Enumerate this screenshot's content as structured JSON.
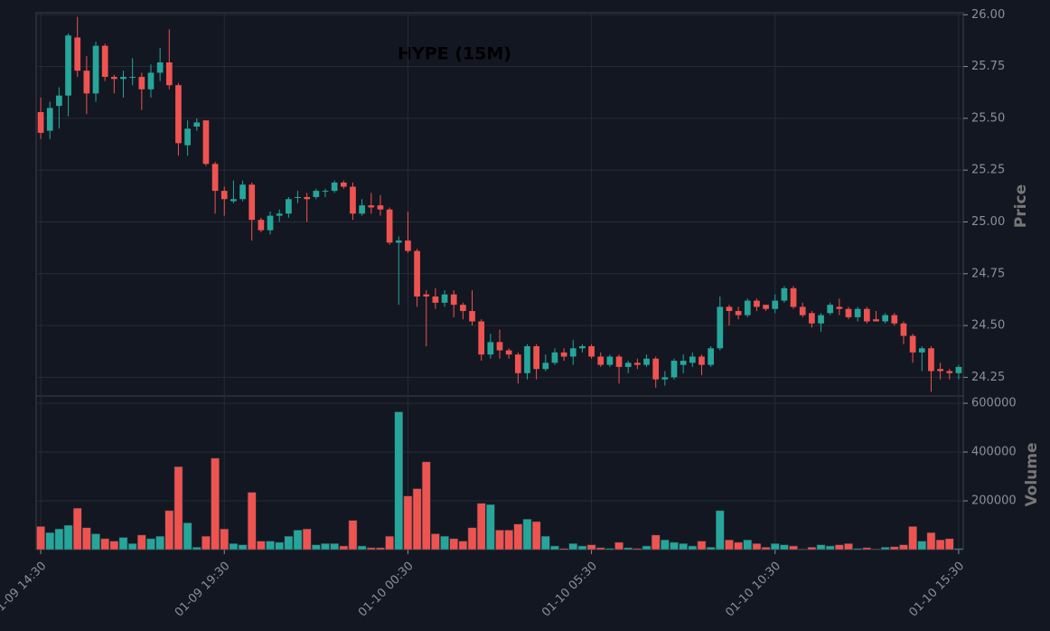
{
  "chart_data": {
    "type": "candlestick",
    "title": "HYPE (15M)",
    "y_label": "Price",
    "y2_label": "Volume",
    "up_color": "#26a69a",
    "down_color": "#ef5350",
    "grid": true,
    "xlim": [
      -0.5,
      100.5
    ],
    "xticks": [
      {
        "value": 0,
        "label": "01-09 14:30"
      },
      {
        "value": 20,
        "label": "01-09 19:30"
      },
      {
        "value": 40,
        "label": "01-10 00:30"
      },
      {
        "value": 60,
        "label": "01-10 05:30"
      },
      {
        "value": 80,
        "label": "01-10 10:30"
      },
      {
        "value": 100,
        "label": "01-10 15:30"
      }
    ],
    "ylim": [
      24.16,
      26.01
    ],
    "yticks": [
      {
        "value": 24.25,
        "label": "24.25"
      },
      {
        "value": 24.5,
        "label": "24.50"
      },
      {
        "value": 24.75,
        "label": "24.75"
      },
      {
        "value": 25,
        "label": "25.00"
      },
      {
        "value": 25.25,
        "label": "25.25"
      },
      {
        "value": 25.5,
        "label": "25.50"
      },
      {
        "value": 25.75,
        "label": "25.75"
      },
      {
        "value": 26,
        "label": "26.00"
      }
    ],
    "y2lim": [
      0,
      630000
    ],
    "y2ticks": [
      200000,
      400000,
      600000
    ],
    "open": [
      25.53,
      25.44,
      25.56,
      25.61,
      25.89,
      25.73,
      25.62,
      25.85,
      25.7,
      25.69,
      25.7,
      25.7,
      25.64,
      25.72,
      25.77,
      25.66,
      25.37,
      25.46,
      25.49,
      25.28,
      25.15,
      25.1,
      25.11,
      25.18,
      25.01,
      24.96,
      25.03,
      25.04,
      25.12,
      25.12,
      25.12,
      25.15,
      25.15,
      25.19,
      25.17,
      25.04,
      25.08,
      25.08,
      25.06,
      24.9,
      24.91,
      24.86,
      24.65,
      24.64,
      24.61,
      24.65,
      24.6,
      24.57,
      24.52,
      24.36,
      24.42,
      24.38,
      24.36,
      24.27,
      24.4,
      24.29,
      24.32,
      24.37,
      24.35,
      24.39,
      24.4,
      24.35,
      24.31,
      24.35,
      24.3,
      24.32,
      24.31,
      24.34,
      24.24,
      24.25,
      24.31,
      24.32,
      24.35,
      24.31,
      24.39,
      24.59,
      24.57,
      24.55,
      24.62,
      24.6,
      24.58,
      24.62,
      24.68,
      24.59,
      24.56,
      24.51,
      24.56,
      24.59,
      24.58,
      24.54,
      24.58,
      24.53,
      24.52,
      24.55,
      24.51,
      24.45,
      24.37,
      24.39,
      24.29,
      24.28,
      24.27
    ],
    "high": [
      25.6,
      25.58,
      25.65,
      25.91,
      25.99,
      25.8,
      25.87,
      25.86,
      25.71,
      25.73,
      25.79,
      25.72,
      25.76,
      25.84,
      25.93,
      25.67,
      25.49,
      25.5,
      25.49,
      25.29,
      25.17,
      25.2,
      25.2,
      25.19,
      25.02,
      25.05,
      25.06,
      25.12,
      25.15,
      25.14,
      25.16,
      25.16,
      25.2,
      25.2,
      25.19,
      25.11,
      25.14,
      25.13,
      25.07,
      24.93,
      25.05,
      24.87,
      24.67,
      24.68,
      24.67,
      24.67,
      24.61,
      24.67,
      24.53,
      24.46,
      24.48,
      24.39,
      24.37,
      24.41,
      24.41,
      24.36,
      24.39,
      24.39,
      24.43,
      24.41,
      24.41,
      24.37,
      24.36,
      24.36,
      24.33,
      24.34,
      24.36,
      24.35,
      24.28,
      24.34,
      24.36,
      24.37,
      24.36,
      24.4,
      24.64,
      24.6,
      24.59,
      24.63,
      24.63,
      24.6,
      24.65,
      24.69,
      24.69,
      24.61,
      24.57,
      24.56,
      24.61,
      24.63,
      24.59,
      24.59,
      24.59,
      24.57,
      24.56,
      24.56,
      24.52,
      24.46,
      24.4,
      24.4,
      24.32,
      24.29,
      24.31
    ],
    "low": [
      25.4,
      25.4,
      25.45,
      25.51,
      25.7,
      25.52,
      25.58,
      25.68,
      25.62,
      25.6,
      25.66,
      25.54,
      25.6,
      25.68,
      25.64,
      25.32,
      25.32,
      25.44,
      25.27,
      25.04,
      25.03,
      25.09,
      25.1,
      24.91,
      24.95,
      24.94,
      25.0,
      25.02,
      25.09,
      25.0,
      25.11,
      25.12,
      25.14,
      25.16,
      25.01,
      25.03,
      25.04,
      25.03,
      24.89,
      24.6,
      24.85,
      24.59,
      24.4,
      24.58,
      24.59,
      24.54,
      24.53,
      24.5,
      24.33,
      24.34,
      24.34,
      24.34,
      24.22,
      24.24,
      24.24,
      24.28,
      24.31,
      24.33,
      24.31,
      24.37,
      24.34,
      24.3,
      24.3,
      24.22,
      24.27,
      24.29,
      24.3,
      24.2,
      24.21,
      24.24,
      24.27,
      24.3,
      24.26,
      24.3,
      24.38,
      24.5,
      24.53,
      24.54,
      24.57,
      24.57,
      24.56,
      24.61,
      24.58,
      24.54,
      24.49,
      24.47,
      24.55,
      24.55,
      24.53,
      24.52,
      24.51,
      24.52,
      24.51,
      24.5,
      24.41,
      24.32,
      24.28,
      24.18,
      24.24,
      24.24,
      24.24
    ],
    "close": [
      25.43,
      25.55,
      25.61,
      25.9,
      25.73,
      25.62,
      25.85,
      25.7,
      25.69,
      25.7,
      25.7,
      25.64,
      25.72,
      25.77,
      25.66,
      25.38,
      25.45,
      25.48,
      25.28,
      25.15,
      25.11,
      25.11,
      25.18,
      25.01,
      24.96,
      25.03,
      25.04,
      25.11,
      25.12,
      25.11,
      25.15,
      25.15,
      25.19,
      25.17,
      25.04,
      25.08,
      25.07,
      25.06,
      24.9,
      24.91,
      24.86,
      24.64,
      24.64,
      24.61,
      24.65,
      24.6,
      24.57,
      24.52,
      24.36,
      24.42,
      24.38,
      24.36,
      24.27,
      24.4,
      24.29,
      24.32,
      24.37,
      24.35,
      24.39,
      24.4,
      24.35,
      24.31,
      24.35,
      24.3,
      24.32,
      24.31,
      24.34,
      24.24,
      24.25,
      24.33,
      24.33,
      24.35,
      24.31,
      24.39,
      24.59,
      24.57,
      24.55,
      24.62,
      24.59,
      24.58,
      24.62,
      24.68,
      24.59,
      24.55,
      24.51,
      24.55,
      24.6,
      24.58,
      24.54,
      24.58,
      24.52,
      24.52,
      24.55,
      24.51,
      24.45,
      24.37,
      24.39,
      24.28,
      24.28,
      24.27,
      24.3
    ],
    "volume": [
      95000,
      70000,
      85000,
      100000,
      170000,
      90000,
      65000,
      45000,
      35000,
      50000,
      25000,
      60000,
      45000,
      55000,
      160000,
      340000,
      110000,
      10000,
      55000,
      375000,
      85000,
      25000,
      20000,
      235000,
      35000,
      35000,
      30000,
      55000,
      80000,
      85000,
      20000,
      25000,
      25000,
      15000,
      120000,
      15000,
      8000,
      8000,
      55000,
      565000,
      220000,
      250000,
      360000,
      65000,
      55000,
      45000,
      35000,
      90000,
      190000,
      185000,
      80000,
      80000,
      105000,
      125000,
      115000,
      55000,
      15000,
      5000,
      25000,
      15000,
      20000,
      8000,
      5000,
      30000,
      8000,
      5000,
      15000,
      60000,
      40000,
      30000,
      25000,
      15000,
      35000,
      10000,
      160000,
      40000,
      30000,
      40000,
      25000,
      10000,
      25000,
      20000,
      15000,
      3000,
      10000,
      20000,
      15000,
      20000,
      25000,
      5000,
      8000,
      3000,
      10000,
      12000,
      20000,
      95000,
      35000,
      70000,
      40000,
      45000,
      5000
    ]
  }
}
